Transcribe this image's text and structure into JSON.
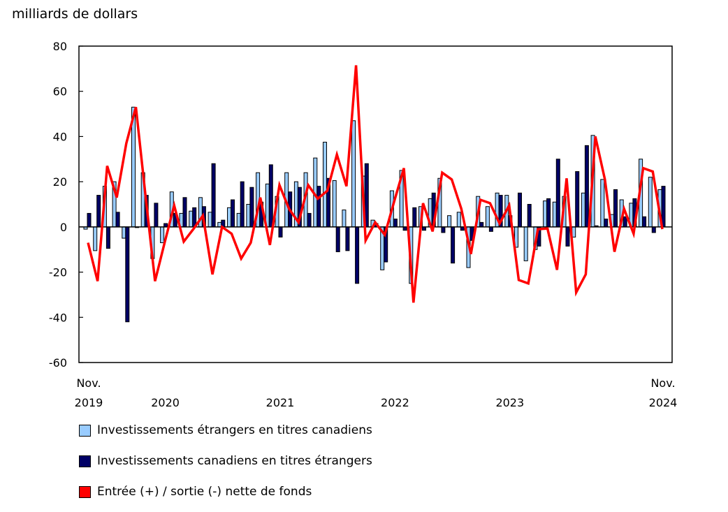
{
  "chart_data": {
    "type": "bar",
    "ylabel": "milliards de dollars",
    "ylim": [
      -60,
      80
    ],
    "yticks": [
      80,
      60,
      40,
      20,
      0,
      -20,
      -40,
      -60
    ],
    "x_start": "Nov. 2019",
    "x_end": "Nov. 2024",
    "xtick_labels": [
      {
        "line1": "Nov.",
        "line2": "2019",
        "month_index": 0
      },
      {
        "line1": "",
        "line2": "2020",
        "month_index": 8
      },
      {
        "line1": "",
        "line2": "2021",
        "month_index": 20
      },
      {
        "line1": "",
        "line2": "2022",
        "month_index": 32
      },
      {
        "line1": "",
        "line2": "2023",
        "month_index": 44
      },
      {
        "line1": "Nov.",
        "line2": "2024",
        "month_index": 60
      }
    ],
    "series": [
      {
        "name": "Investissements étrangers en titres canadiens",
        "type": "bar",
        "color": "#99CCFF",
        "values": [
          -1,
          -10.5,
          18,
          20,
          -5,
          53,
          24,
          -14,
          -7,
          15.5,
          6,
          7,
          13,
          6.5,
          2,
          8.5,
          6,
          10,
          24,
          19,
          13.5,
          24,
          20,
          24,
          30.5,
          37.5,
          20.5,
          7.5,
          47,
          22.5,
          3,
          -19,
          16,
          25,
          -25,
          9,
          12.5,
          21.5,
          5,
          6.5,
          -18,
          13.5,
          9,
          15,
          14,
          -9,
          -15,
          -10,
          11.5,
          11,
          13.5,
          -4.5,
          15,
          40.5,
          21,
          5.5,
          12,
          10.5,
          30,
          22,
          16.5
        ]
      },
      {
        "name": "Investissements canadiens en titres étrangers",
        "type": "bar",
        "color": "#000066",
        "values": [
          6,
          14,
          -9.5,
          6.5,
          -42,
          -0.3,
          14,
          10.5,
          1.5,
          6,
          13,
          8.5,
          9,
          28,
          3,
          12,
          20,
          17.5,
          11,
          27.5,
          -4.5,
          15.5,
          17.5,
          6,
          18,
          21.5,
          -11,
          -10.5,
          -25,
          28,
          1.5,
          -15.5,
          3.5,
          -1.5,
          8.5,
          -1.5,
          15,
          -2.5,
          -16,
          -1.5,
          -6,
          2,
          -2,
          14,
          5,
          15,
          10,
          -8.5,
          12.5,
          30,
          -8.5,
          24.5,
          36,
          0.5,
          3.5,
          16.5,
          4.5,
          12.5,
          4.5,
          -2.5,
          18
        ]
      },
      {
        "name": "Entrée (+) / sortie (-) nette de fonds",
        "type": "line",
        "color": "#FF0000",
        "values": [
          -7,
          -24,
          27,
          13,
          37,
          53,
          14,
          -24,
          -7,
          9.5,
          -6.5,
          -1,
          5,
          -21,
          0,
          -3,
          -14,
          -7,
          13,
          -8,
          18.5,
          8,
          2,
          18.5,
          12.5,
          16,
          32,
          18,
          71.5,
          -6,
          2,
          -3.5,
          11.5,
          26,
          -33.5,
          10.5,
          -2,
          24,
          21,
          8,
          -12,
          12,
          10.5,
          1.5,
          9.5,
          -23.5,
          -25,
          -1,
          -0.7,
          -19,
          21.5,
          -29,
          -21,
          40,
          21,
          -11,
          8,
          -3,
          26,
          24.5,
          -1
        ]
      }
    ]
  },
  "legend": [
    {
      "label": "Investissements étrangers en titres canadiens",
      "color": "#99CCFF"
    },
    {
      "label": "Investissements canadiens en titres étrangers",
      "color": "#000066"
    },
    {
      "label": "Entrée (+) / sortie (-) nette de fonds",
      "color": "#FF0000"
    }
  ]
}
